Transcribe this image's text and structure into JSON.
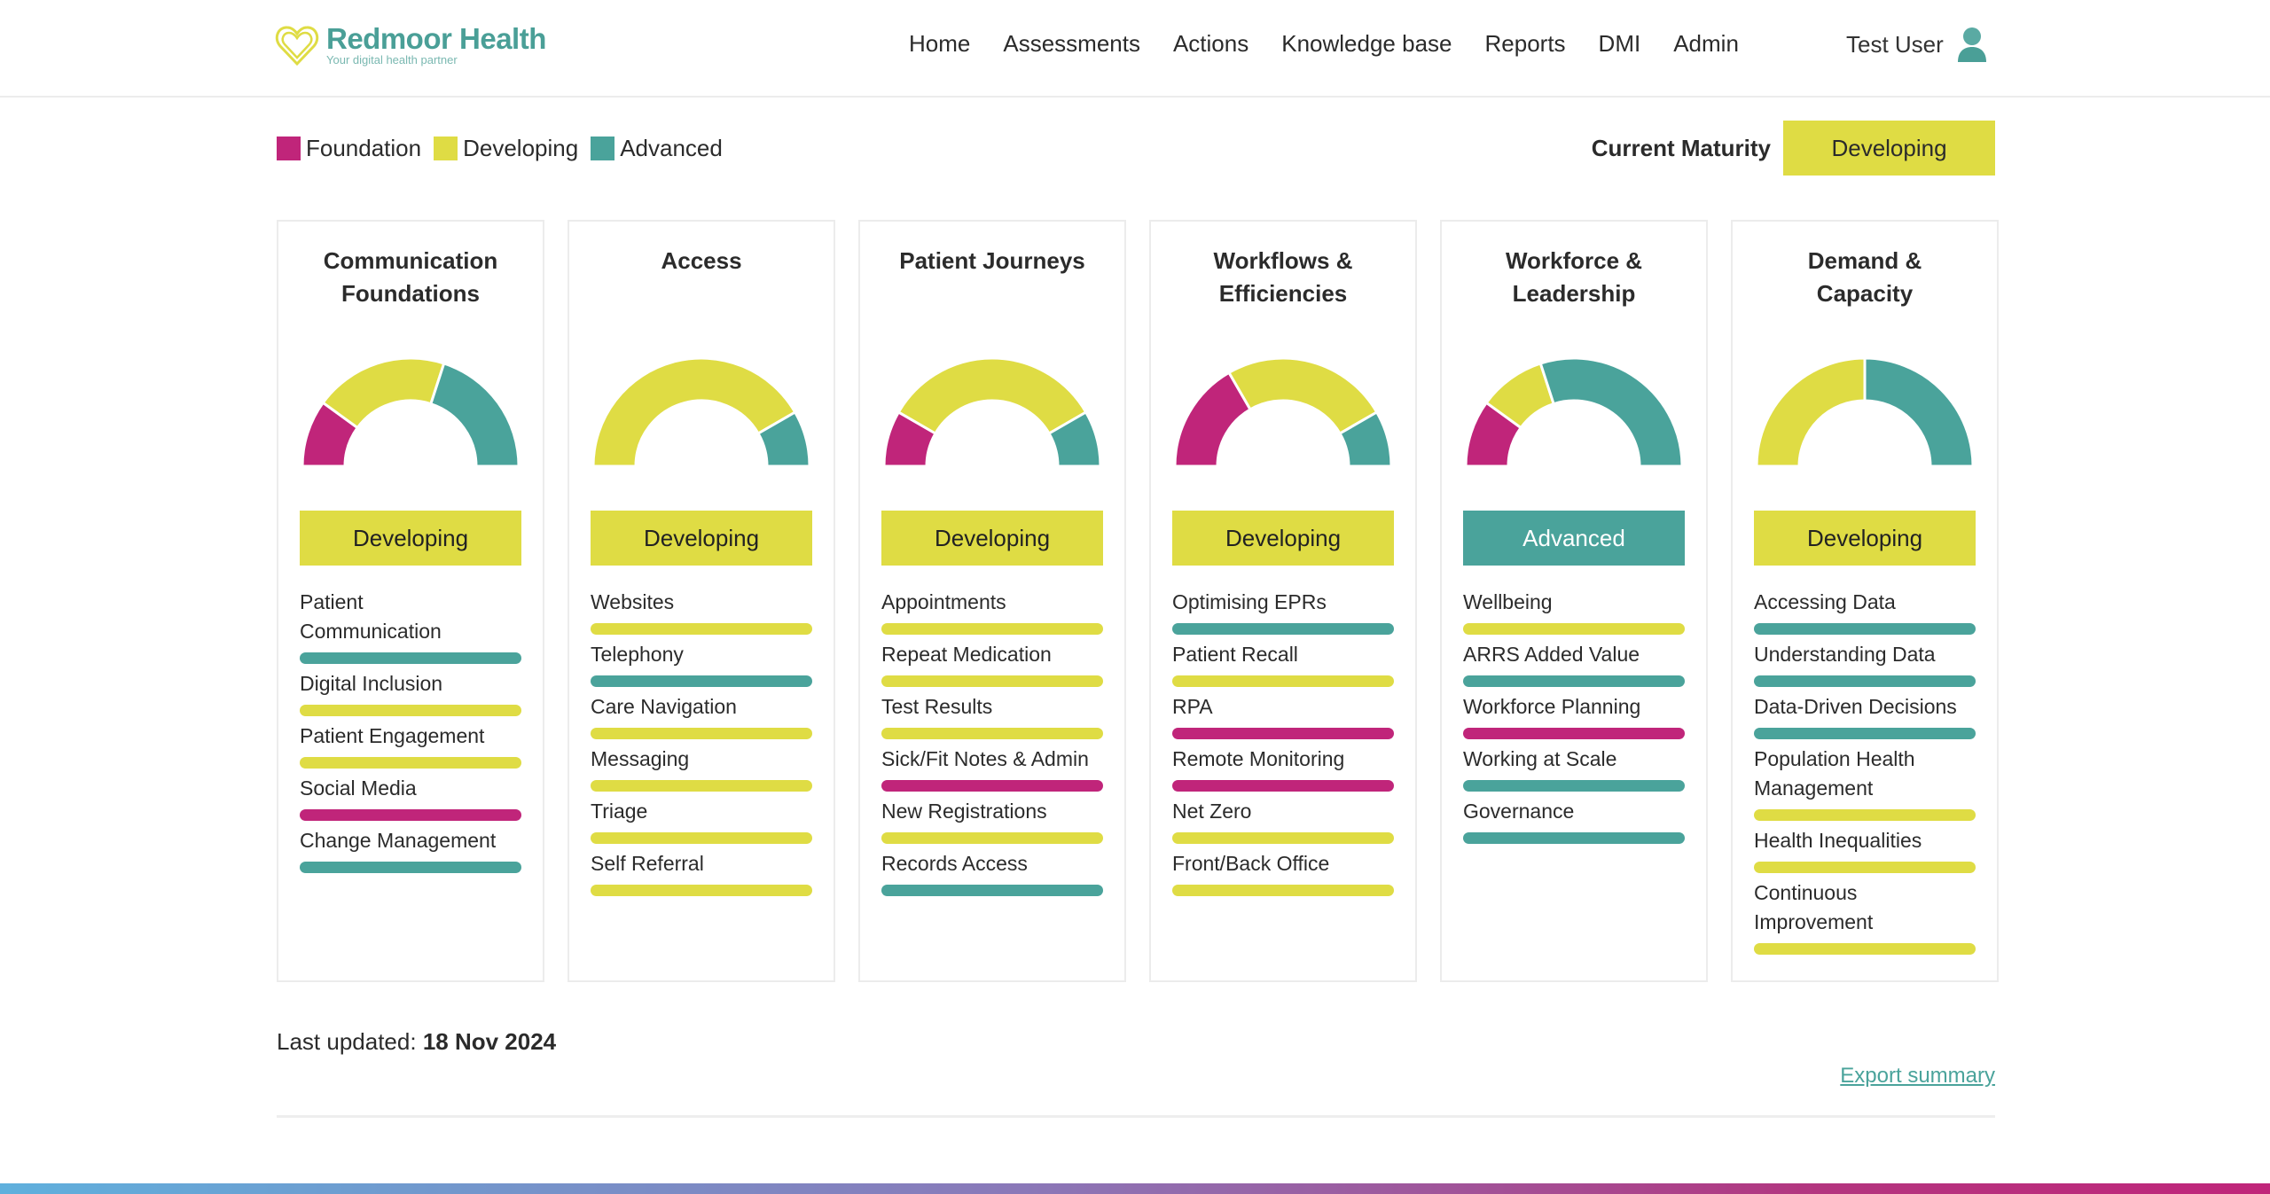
{
  "brand": {
    "name": "Redmoor Health",
    "tagline": "Your digital health partner"
  },
  "nav": [
    "Home",
    "Assessments",
    "Actions",
    "Knowledge base",
    "Reports",
    "DMI",
    "Admin"
  ],
  "user": {
    "name": "Test User",
    "icon": "user-icon"
  },
  "legend": [
    {
      "label": "Foundation",
      "color": "#c0257a"
    },
    {
      "label": "Developing",
      "color": "#dfdc44"
    },
    {
      "label": "Advanced",
      "color": "#4aa39b"
    }
  ],
  "colors": {
    "foundation": "#c0257a",
    "developing": "#dfdc44",
    "advanced": "#4aa39b"
  },
  "current_maturity": {
    "label": "Current Maturity",
    "value": "Developing"
  },
  "cards": [
    {
      "title_lines": [
        "Communication",
        "Foundations"
      ],
      "status": "Developing",
      "items": [
        {
          "label": "Patient\nCommunication",
          "level": "advanced"
        },
        {
          "label": "Digital Inclusion",
          "level": "developing"
        },
        {
          "label": "Patient Engagement",
          "level": "developing"
        },
        {
          "label": "Social Media",
          "level": "foundation"
        },
        {
          "label": "Change Management",
          "level": "advanced"
        }
      ]
    },
    {
      "title_lines": [
        "Access"
      ],
      "status": "Developing",
      "items": [
        {
          "label": "Websites",
          "level": "developing"
        },
        {
          "label": "Telephony",
          "level": "advanced"
        },
        {
          "label": "Care Navigation",
          "level": "developing"
        },
        {
          "label": "Messaging",
          "level": "developing"
        },
        {
          "label": "Triage",
          "level": "developing"
        },
        {
          "label": "Self Referral",
          "level": "developing"
        }
      ]
    },
    {
      "title_lines": [
        "Patient Journeys"
      ],
      "status": "Developing",
      "items": [
        {
          "label": "Appointments",
          "level": "developing"
        },
        {
          "label": "Repeat Medication",
          "level": "developing"
        },
        {
          "label": "Test Results",
          "level": "developing"
        },
        {
          "label": "Sick/Fit Notes & Admin",
          "level": "foundation"
        },
        {
          "label": "New Registrations",
          "level": "developing"
        },
        {
          "label": "Records Access",
          "level": "advanced"
        }
      ]
    },
    {
      "title_lines": [
        "Workflows &",
        "Efficiencies"
      ],
      "status": "Developing",
      "items": [
        {
          "label": "Optimising EPRs",
          "level": "advanced"
        },
        {
          "label": "Patient Recall",
          "level": "developing"
        },
        {
          "label": "RPA",
          "level": "foundation"
        },
        {
          "label": "Remote Monitoring",
          "level": "foundation"
        },
        {
          "label": "Net Zero",
          "level": "developing"
        },
        {
          "label": "Front/Back Office",
          "level": "developing"
        }
      ]
    },
    {
      "title_lines": [
        "Workforce &",
        "Leadership"
      ],
      "status": "Advanced",
      "items": [
        {
          "label": "Wellbeing",
          "level": "developing"
        },
        {
          "label": "ARRS Added Value",
          "level": "advanced"
        },
        {
          "label": "Workforce Planning",
          "level": "foundation"
        },
        {
          "label": "Working at Scale",
          "level": "advanced"
        },
        {
          "label": "Governance",
          "level": "advanced"
        }
      ]
    },
    {
      "title_lines": [
        "Demand &",
        "Capacity"
      ],
      "status": "Developing",
      "items": [
        {
          "label": "Accessing Data",
          "level": "advanced"
        },
        {
          "label": "Understanding Data",
          "level": "advanced"
        },
        {
          "label": "Data-Driven Decisions",
          "level": "advanced"
        },
        {
          "label": "Population Health\nManagement",
          "level": "developing"
        },
        {
          "label": "Health Inequalities",
          "level": "developing"
        },
        {
          "label": "Continuous\nImprovement",
          "level": "developing"
        }
      ]
    }
  ],
  "footer": {
    "last_updated_label": "Last updated:",
    "last_updated_value": "18 Nov 2024",
    "export_label": "Export summary"
  }
}
